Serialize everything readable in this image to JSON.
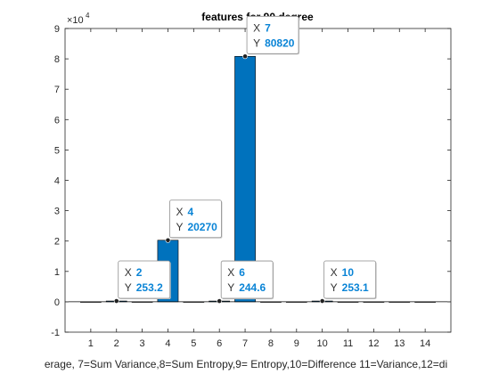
{
  "chart_data": {
    "type": "bar",
    "title": "features for 90 degree",
    "xlabel": "erage, 7=Sum Variance,8=Sum Entropy,9= Entropy,10=Difference 11=Variance,12=di",
    "ylabel": "",
    "exponent_label": "×10",
    "exponent_power": "4",
    "x": [
      1,
      2,
      3,
      4,
      5,
      6,
      7,
      8,
      9,
      10,
      11,
      12,
      13,
      14
    ],
    "values": [
      0,
      253.2,
      0,
      20270,
      0,
      244.6,
      80820,
      0,
      0,
      253.1,
      0,
      0,
      0,
      0
    ],
    "xlim": [
      0,
      15
    ],
    "ylim": [
      -10000,
      90000
    ],
    "xticks": [
      "1",
      "2",
      "3",
      "4",
      "5",
      "6",
      "7",
      "8",
      "9",
      "10",
      "11",
      "12",
      "13",
      "14"
    ],
    "yticks": [
      "-1",
      "0",
      "1",
      "2",
      "3",
      "4",
      "5",
      "6",
      "7",
      "8",
      "9"
    ],
    "bar_color": "#0072BD",
    "grid": false,
    "datatips": [
      {
        "x": 2,
        "y": 253.2,
        "x_key": "X",
        "y_key": "Y",
        "x_text": "2",
        "y_text": "253.2"
      },
      {
        "x": 4,
        "y": 20270,
        "x_key": "X",
        "y_key": "Y",
        "x_text": "4",
        "y_text": "20270"
      },
      {
        "x": 6,
        "y": 244.6,
        "x_key": "X",
        "y_key": "Y",
        "x_text": "6",
        "y_text": "244.6"
      },
      {
        "x": 7,
        "y": 80820,
        "x_key": "X",
        "y_key": "Y",
        "x_text": "7",
        "y_text": "80820"
      },
      {
        "x": 10,
        "y": 253.1,
        "x_key": "X",
        "y_key": "Y",
        "x_text": "10",
        "y_text": "253.1"
      }
    ]
  }
}
